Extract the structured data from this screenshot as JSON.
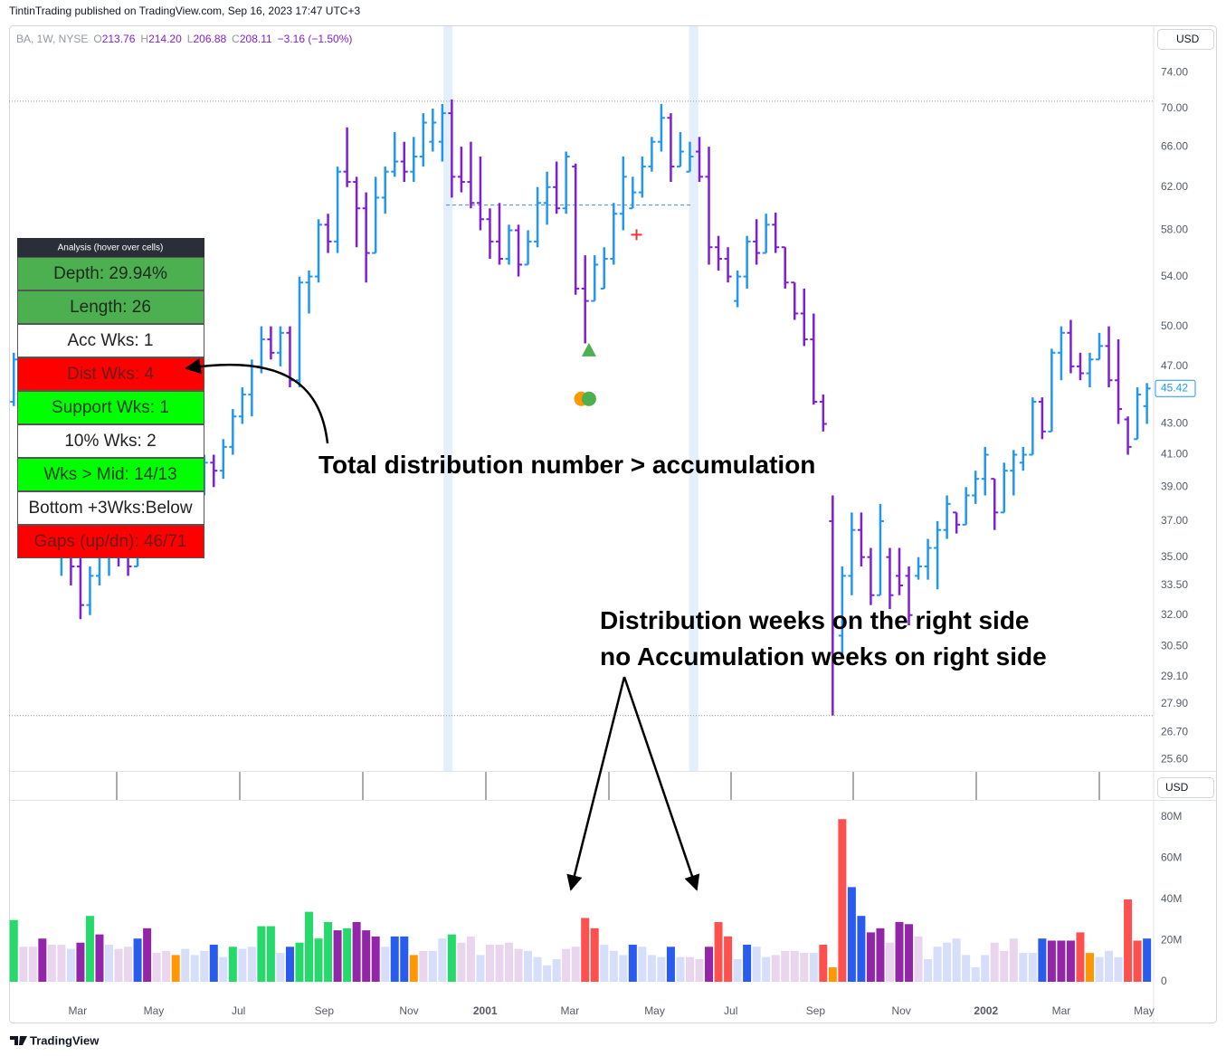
{
  "header": "TintinTrading published on TradingView.com, Sep 16, 2023 17:47 UTC+3",
  "legend": {
    "symbol": "BA, 1W, NYSE",
    "fields": [
      {
        "key": "O",
        "value": "213.76"
      },
      {
        "key": "H",
        "value": "214.20"
      },
      {
        "key": "L",
        "value": "206.88"
      },
      {
        "key": "C",
        "value": "208.11"
      }
    ],
    "change": "−3.16 (−1.50%)"
  },
  "currency": "USD",
  "chart_data": [
    {
      "type": "ohlc",
      "log_scale": true,
      "grid": false,
      "up_color": "#2196f3",
      "down_color": "#7e1fd8",
      "xlim": [
        -0.5,
        119.7
      ],
      "ylim": [
        25.15,
        79.5
      ],
      "yticks": [
        {
          "value": 74,
          "label": "74.00"
        },
        {
          "value": 70,
          "label": "70.00"
        },
        {
          "value": 66,
          "label": "66.00"
        },
        {
          "value": 62,
          "label": "62.00"
        },
        {
          "value": 58,
          "label": "58.00"
        },
        {
          "value": 54,
          "label": "54.00"
        },
        {
          "value": 50,
          "label": "50.00"
        },
        {
          "value": 47,
          "label": "47.00"
        },
        {
          "value": 43,
          "label": "43.00"
        },
        {
          "value": 41,
          "label": "41.00"
        },
        {
          "value": 39,
          "label": "39.00"
        },
        {
          "value": 37,
          "label": "37.00"
        },
        {
          "value": 35,
          "label": "35.00"
        },
        {
          "value": 33.5,
          "label": "33.50"
        },
        {
          "value": 32,
          "label": "32.00"
        },
        {
          "value": 30.5,
          "label": "30.50"
        },
        {
          "value": 29.1,
          "label": "29.10"
        },
        {
          "value": 27.9,
          "label": "27.90"
        },
        {
          "value": 26.7,
          "label": "26.70"
        },
        {
          "value": 25.6,
          "label": "25.60"
        }
      ],
      "hlines": [
        70.8,
        27.4
      ],
      "base_line": {
        "value": 60.3,
        "from": 45.4,
        "to": 71.2,
        "color": "#4a86e8"
      },
      "highlight_x": [
        45.6,
        71.4
      ],
      "markers": [
        {
          "shape": "cross",
          "x": 65.4,
          "y": 57.6,
          "color": "#e53935"
        },
        {
          "shape": "triangle",
          "x": 60.4,
          "y": 48.2,
          "color": "#4caf50"
        },
        {
          "shape": "circle",
          "x": 59.6,
          "y": 44.7,
          "color": "#ff9800"
        },
        {
          "shape": "circle",
          "x": 60.4,
          "y": 44.7,
          "color": "#4caf50"
        }
      ],
      "ohlc": [
        [
          44.5,
          48,
          44.2,
          47.5
        ],
        [
          47.5,
          47.8,
          41.5,
          42
        ],
        [
          42,
          43,
          39,
          39.5
        ],
        [
          39.5,
          40.5,
          37,
          37.5
        ],
        [
          37.5,
          38.5,
          35,
          35.5
        ],
        [
          35.5,
          37,
          34,
          36.5
        ],
        [
          36.5,
          37,
          33.5,
          34.5
        ],
        [
          34.5,
          35,
          31.8,
          32.5
        ],
        [
          32.5,
          34.5,
          32,
          34
        ],
        [
          34,
          35.5,
          33.5,
          35
        ],
        [
          35,
          36,
          34,
          35.5
        ],
        [
          35.5,
          36.5,
          34.5,
          35
        ],
        [
          35,
          36,
          34,
          34.5
        ],
        [
          34.5,
          37,
          34.5,
          36.5
        ],
        [
          36.5,
          38,
          36,
          37.5
        ],
        [
          37.5,
          38.5,
          36.5,
          37
        ],
        [
          37,
          39,
          36.5,
          38.5
        ],
        [
          38.5,
          39.5,
          37.5,
          38
        ],
        [
          38,
          39.5,
          37,
          38.5
        ],
        [
          38.5,
          39.5,
          38,
          39
        ],
        [
          39,
          41,
          38.5,
          40.5
        ],
        [
          40.5,
          41,
          39,
          40
        ],
        [
          40,
          42,
          39.5,
          41.5
        ],
        [
          41.5,
          44,
          41,
          43.5
        ],
        [
          43.5,
          45.5,
          43,
          45
        ],
        [
          45,
          47.5,
          43.5,
          47
        ],
        [
          47,
          50,
          46.5,
          49
        ],
        [
          49,
          50,
          47.5,
          48
        ],
        [
          48,
          50,
          47,
          49.5
        ],
        [
          49.5,
          50,
          45.5,
          46
        ],
        [
          46,
          54,
          45.5,
          53.5
        ],
        [
          53.5,
          54.5,
          51,
          54
        ],
        [
          54,
          59,
          53.5,
          58.5
        ],
        [
          58.5,
          59.5,
          56,
          57
        ],
        [
          57,
          64,
          56,
          63.5
        ],
        [
          63.5,
          68,
          62,
          62.5
        ],
        [
          62.5,
          63,
          56.5,
          60
        ],
        [
          60,
          61.5,
          53.5,
          56
        ],
        [
          56,
          63,
          56,
          61
        ],
        [
          61,
          64,
          59.5,
          63.5
        ],
        [
          63.5,
          67.5,
          63,
          64.5
        ],
        [
          64.5,
          66.5,
          62.5,
          63.5
        ],
        [
          63.5,
          67,
          62.5,
          65
        ],
        [
          65,
          69.5,
          64,
          68.5
        ],
        [
          66.5,
          70,
          65.5,
          68.5
        ],
        [
          66.5,
          70.5,
          64.5,
          69.5
        ],
        [
          69.5,
          71,
          61,
          63
        ],
        [
          63,
          66,
          61.5,
          62.5
        ],
        [
          62.5,
          66.5,
          60,
          60.5
        ],
        [
          60.5,
          65,
          58,
          59
        ],
        [
          59,
          60,
          55.5,
          57
        ],
        [
          57,
          60.5,
          55,
          55.5
        ],
        [
          55.5,
          58.5,
          55,
          58
        ],
        [
          58,
          58.5,
          54,
          55
        ],
        [
          55,
          58,
          55,
          57
        ],
        [
          57,
          62,
          56.5,
          60.5
        ],
        [
          60.5,
          63.5,
          58.5,
          62
        ],
        [
          62,
          64.5,
          59.5,
          60
        ],
        [
          60,
          65.5,
          59.5,
          65
        ],
        [
          64,
          64.3,
          52.5,
          53
        ],
        [
          53,
          55.8,
          48.7,
          52
        ],
        [
          52,
          55.8,
          52,
          55
        ],
        [
          53,
          56.5,
          53,
          55.5
        ],
        [
          55.5,
          60.5,
          55,
          59.5
        ],
        [
          59.5,
          65,
          58,
          63
        ],
        [
          60,
          63,
          60,
          61.5
        ],
        [
          61.5,
          65,
          61,
          64
        ],
        [
          64,
          67,
          63.5,
          66.5
        ],
        [
          66.5,
          70.5,
          65.5,
          69
        ],
        [
          69,
          69.5,
          62.5,
          64
        ],
        [
          64,
          67.5,
          64,
          65.5
        ],
        [
          63.5,
          66.5,
          63.5,
          65
        ],
        [
          65.5,
          67,
          62.5,
          63
        ],
        [
          63,
          66,
          55,
          56.5
        ],
        [
          56.5,
          57.5,
          54.5,
          55.5
        ],
        [
          55.5,
          56.5,
          53.5,
          54
        ],
        [
          52,
          54.5,
          51.5,
          54
        ],
        [
          54,
          57.5,
          53,
          57
        ],
        [
          57,
          59,
          55,
          56
        ],
        [
          56,
          59.5,
          56,
          58.5
        ],
        [
          58.5,
          59.6,
          56,
          56.5
        ],
        [
          56.5,
          56.5,
          53,
          53.5
        ],
        [
          53.5,
          53.5,
          50.5,
          51
        ],
        [
          51,
          53,
          48.5,
          49
        ],
        [
          49,
          51,
          44.3,
          44.5
        ],
        [
          44.5,
          45,
          42.5,
          43
        ],
        [
          37,
          38.5,
          27.4,
          30
        ],
        [
          31,
          34.5,
          30,
          34
        ],
        [
          34,
          37.5,
          33,
          36.5
        ],
        [
          36.5,
          37.5,
          34.5,
          35
        ],
        [
          35,
          35.5,
          32.5,
          33
        ],
        [
          33,
          38,
          33,
          37
        ],
        [
          35,
          35.5,
          32.3,
          33
        ],
        [
          34,
          35.5,
          33,
          33.5
        ],
        [
          34,
          34.5,
          31.5,
          32
        ],
        [
          34,
          35,
          33.8,
          34.5
        ],
        [
          34.5,
          36,
          33.8,
          35.5
        ],
        [
          35.5,
          37,
          33.3,
          36.5
        ],
        [
          36.5,
          38.5,
          36,
          38
        ],
        [
          37.5,
          37.5,
          36.3,
          36.8
        ],
        [
          36.8,
          39,
          36.8,
          38.5
        ],
        [
          38.5,
          40,
          38,
          39.5
        ],
        [
          39.5,
          41.5,
          38.5,
          41
        ],
        [
          39.5,
          39.5,
          36.5,
          37.5
        ],
        [
          37.5,
          40.5,
          37.5,
          40
        ],
        [
          40,
          41.3,
          38.5,
          41
        ],
        [
          40.5,
          41.5,
          40,
          41
        ],
        [
          41,
          44.8,
          41,
          44.5
        ],
        [
          44.5,
          44.8,
          42,
          42.5
        ],
        [
          42.5,
          48.3,
          42.5,
          48
        ],
        [
          48,
          50,
          46,
          49.5
        ],
        [
          49.5,
          50.5,
          46.5,
          47
        ],
        [
          47,
          48,
          46,
          46.5
        ],
        [
          46.5,
          48,
          45.5,
          47.5
        ],
        [
          47.5,
          49.5,
          47.5,
          48.5
        ],
        [
          48.5,
          50,
          45.5,
          46
        ],
        [
          46,
          49,
          43,
          44
        ],
        [
          43.3,
          43.5,
          41,
          41.5
        ],
        [
          42,
          45.5,
          42,
          45
        ],
        [
          44.2,
          45.8,
          43,
          45.42
        ]
      ]
    },
    {
      "type": "bar",
      "xlim": [
        -0.5,
        119.7
      ],
      "ylim": [
        -8.8,
        87.9
      ],
      "yticks": [
        0,
        {
          "value": 20,
          "label": "20M"
        },
        {
          "value": 40,
          "label": "40M"
        },
        {
          "value": 60,
          "label": "60M"
        },
        {
          "value": 80,
          "label": "80M"
        }
      ],
      "xticks": [
        {
          "value": 6.7,
          "label": "Mar"
        },
        {
          "value": 14.7,
          "label": "May"
        },
        {
          "value": 23.6,
          "label": "Jul"
        },
        {
          "value": 32.6,
          "label": "Sep"
        },
        {
          "value": 41.5,
          "label": "Nov"
        },
        {
          "value": 49.5,
          "label": "2001"
        },
        {
          "value": 58.4,
          "label": "Mar"
        },
        {
          "value": 67.3,
          "label": "May"
        },
        {
          "value": 75.3,
          "label": "Jul"
        },
        {
          "value": 84.2,
          "label": "Sep"
        },
        {
          "value": 93.2,
          "label": "Nov"
        },
        {
          "value": 102.1,
          "label": "2002"
        },
        {
          "value": 110,
          "label": "Mar"
        },
        {
          "value": 118.7,
          "label": "May"
        }
      ],
      "values": [
        30,
        17,
        17,
        21,
        18,
        18,
        16,
        19,
        32,
        23,
        18,
        16,
        17,
        21,
        26,
        14,
        15,
        13,
        16,
        13,
        15,
        18,
        12,
        17,
        16,
        17,
        27,
        27,
        14,
        17,
        19,
        34,
        21,
        29,
        25,
        26,
        29,
        25,
        22,
        17,
        22,
        22,
        13,
        15,
        15,
        21,
        23,
        19,
        22,
        13,
        18,
        18,
        19,
        16,
        15,
        12,
        8,
        11,
        16,
        17,
        31,
        26,
        18,
        15,
        13,
        18,
        17,
        13,
        12,
        17,
        12,
        12,
        11,
        17,
        29,
        22,
        11,
        18,
        17,
        12,
        13,
        15,
        15,
        14,
        14,
        18,
        7,
        79,
        46,
        32,
        24,
        26,
        19,
        29,
        28,
        22,
        11,
        17,
        19,
        21,
        13,
        7,
        13,
        19,
        15,
        21,
        14,
        14,
        21,
        20,
        20,
        20,
        24,
        14,
        12,
        15,
        12,
        40,
        20,
        21
      ],
      "colors": [
        "#26d96b",
        "#e9d6ee",
        "#e9d6ee",
        "#9326a8",
        "#e9d6ee",
        "#e9d6ee",
        "#d6defa",
        "#9326a8",
        "#26d96b",
        "#9326a8",
        "#d6defa",
        "#e9d6ee",
        "#e9d6ee",
        "#2a5bef",
        "#9326a8",
        "#e9d6ee",
        "#e9d6ee",
        "#ff9800",
        "#d6defa",
        "#d6defa",
        "#d6defa",
        "#2a5bef",
        "#d6defa",
        "#26d96b",
        "#d6defa",
        "#d6defa",
        "#26d96b",
        "#26d96b",
        "#d6defa",
        "#2a5bef",
        "#26d96b",
        "#26d96b",
        "#26d96b",
        "#26d96b",
        "#9326a8",
        "#26d96b",
        "#9326a8",
        "#9326a8",
        "#9326a8",
        "#d6defa",
        "#2a5bef",
        "#2a5bef",
        "#ff9800",
        "#e9d6ee",
        "#d6defa",
        "#d6defa",
        "#26d96b",
        "#e9d6ee",
        "#e9d6ee",
        "#d6defa",
        "#e9d6ee",
        "#e9d6ee",
        "#e9d6ee",
        "#e9d6ee",
        "#d6defa",
        "#d6defa",
        "#d6defa",
        "#d6defa",
        "#e9d6ee",
        "#e9d6ee",
        "#ff5050",
        "#ff5050",
        "#d6defa",
        "#d6defa",
        "#d6defa",
        "#2a5bef",
        "#d6defa",
        "#d6defa",
        "#d6defa",
        "#2a5bef",
        "#d6defa",
        "#e9d6ee",
        "#e9d6ee",
        "#9326a8",
        "#ff5050",
        "#ff5050",
        "#d6defa",
        "#2a5bef",
        "#d6defa",
        "#d6defa",
        "#e9d6ee",
        "#e9d6ee",
        "#e9d6ee",
        "#e9d6ee",
        "#d6defa",
        "#ff5050",
        "#ff9800",
        "#ff5050",
        "#2a5bef",
        "#2a5bef",
        "#9326a8",
        "#9326a8",
        "#e9d6ee",
        "#9326a8",
        "#9326a8",
        "#e9d6ee",
        "#d6defa",
        "#d6defa",
        "#d6defa",
        "#d6defa",
        "#d6defa",
        "#d6defa",
        "#d6defa",
        "#e9d6ee",
        "#e9d6ee",
        "#e9d6ee",
        "#d6defa",
        "#d6defa",
        "#2a5bef",
        "#9326a8",
        "#9326a8",
        "#9326a8",
        "#ff5050",
        "#ff9800",
        "#d6defa",
        "#d6defa",
        "#d6defa",
        "#ff5050",
        "#ff5050",
        "#2a5bef"
      ]
    }
  ],
  "analysis": {
    "title": "Analysis (hover over cells)",
    "rows": [
      {
        "text": "Depth: 29.94%",
        "bg": "#4caf50",
        "color": "#1c2a1c"
      },
      {
        "text": "Length: 26",
        "bg": "#4caf50",
        "color": "#1c2a1c"
      },
      {
        "text": "Acc Wks: 1",
        "bg": "#ffffff",
        "color": "#222222"
      },
      {
        "text": "Dist Wks: 4",
        "bg": "#ff0000",
        "color": "#6b1b1b"
      },
      {
        "text": "Support Wks: 1",
        "bg": "#00ff00",
        "color": "#1c3a1c"
      },
      {
        "text": "10% Wks: 2",
        "bg": "#ffffff",
        "color": "#222222"
      },
      {
        "text": "Wks > Mid: 14/13",
        "bg": "#00ff00",
        "color": "#1c3a1c"
      },
      {
        "text": "Bottom +3Wks:Below",
        "bg": "#ffffff",
        "color": "#222222"
      },
      {
        "text": "Gaps (up/dn): 46/71",
        "bg": "#ff0000",
        "color": "#6b1b1b"
      }
    ]
  },
  "annotations": [
    "Total distribution number > accumulation",
    "Distribution weeks on the right side",
    "no Accumulation weeks on right side"
  ],
  "footer": "TradingView"
}
